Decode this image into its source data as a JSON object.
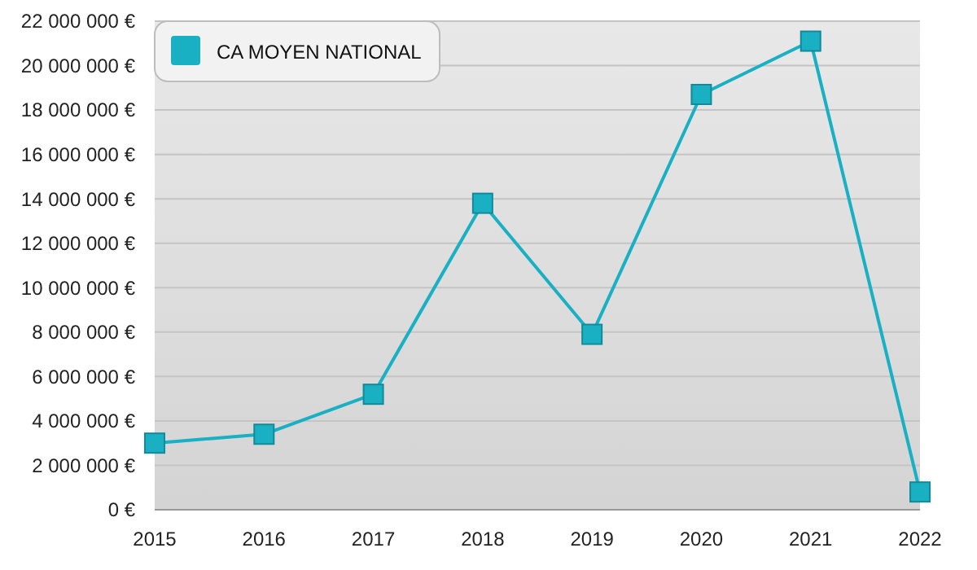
{
  "chart_data": {
    "type": "line",
    "x": [
      2015,
      2016,
      2017,
      2018,
      2019,
      2020,
      2021,
      2022
    ],
    "xlim": [
      2015,
      2022
    ],
    "xticks": [
      2015,
      2016,
      2017,
      2018,
      2019,
      2020,
      2021,
      2022
    ],
    "ylim": [
      0,
      22000000
    ],
    "yticks": [
      {
        "value": 0,
        "label": "0 €"
      },
      {
        "value": 2000000,
        "label": "2 000 000 €"
      },
      {
        "value": 4000000,
        "label": "4 000 000 €"
      },
      {
        "value": 6000000,
        "label": "6 000 000 €"
      },
      {
        "value": 8000000,
        "label": "8 000 000 €"
      },
      {
        "value": 10000000,
        "label": "10 000 000 €"
      },
      {
        "value": 12000000,
        "label": "12 000 000 €"
      },
      {
        "value": 14000000,
        "label": "14 000 000 €"
      },
      {
        "value": 16000000,
        "label": "16 000 000 €"
      },
      {
        "value": 18000000,
        "label": "18 000 000 €"
      },
      {
        "value": 20000000,
        "label": "20 000 000 €"
      },
      {
        "value": 22000000,
        "label": "22 000 000 €"
      }
    ],
    "series": [
      {
        "name": "CA MOYEN NATIONAL",
        "color": "#1ab0c4",
        "values": [
          3000000,
          3400000,
          5200000,
          13800000,
          7900000,
          18700000,
          21100000,
          800000
        ]
      }
    ],
    "grid": "y",
    "legend": "top left",
    "marker": "square",
    "line_style": "solid"
  }
}
